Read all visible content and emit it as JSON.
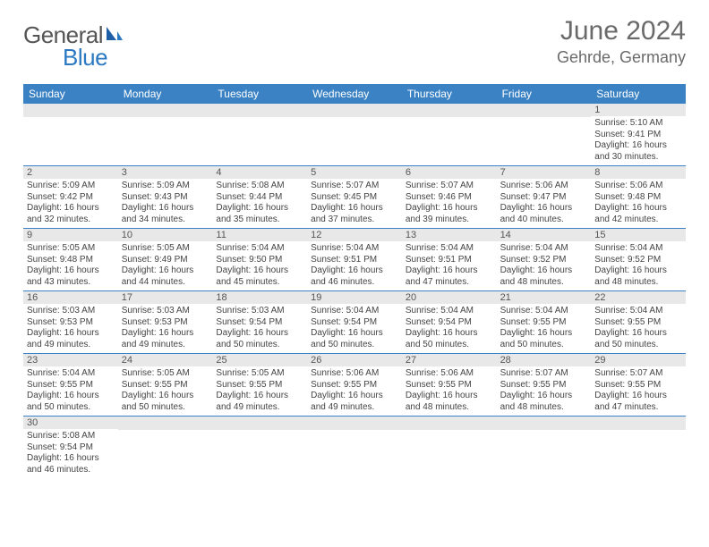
{
  "brand": {
    "part1": "General",
    "part2": "Blue"
  },
  "title": "June 2024",
  "location": "Gehrde, Germany",
  "colors": {
    "header_bg": "#3b82c4",
    "header_text": "#ffffff",
    "brand_gray": "#555555",
    "brand_blue": "#2b79c2",
    "title_gray": "#6a6a6a",
    "row_band": "#e8e8e8",
    "week_divider": "#3b82c4",
    "body_text": "#444444"
  },
  "typography": {
    "title_fontsize": 30,
    "location_fontsize": 18,
    "logo_fontsize": 26,
    "dayheader_fontsize": 12,
    "daynum_fontsize": 11,
    "detail_fontsize": 10
  },
  "dayNames": [
    "Sunday",
    "Monday",
    "Tuesday",
    "Wednesday",
    "Thursday",
    "Friday",
    "Saturday"
  ],
  "weeks": [
    [
      null,
      null,
      null,
      null,
      null,
      null,
      {
        "n": "1",
        "sr": "Sunrise: 5:10 AM",
        "ss": "Sunset: 9:41 PM",
        "dl1": "Daylight: 16 hours",
        "dl2": "and 30 minutes."
      }
    ],
    [
      {
        "n": "2",
        "sr": "Sunrise: 5:09 AM",
        "ss": "Sunset: 9:42 PM",
        "dl1": "Daylight: 16 hours",
        "dl2": "and 32 minutes."
      },
      {
        "n": "3",
        "sr": "Sunrise: 5:09 AM",
        "ss": "Sunset: 9:43 PM",
        "dl1": "Daylight: 16 hours",
        "dl2": "and 34 minutes."
      },
      {
        "n": "4",
        "sr": "Sunrise: 5:08 AM",
        "ss": "Sunset: 9:44 PM",
        "dl1": "Daylight: 16 hours",
        "dl2": "and 35 minutes."
      },
      {
        "n": "5",
        "sr": "Sunrise: 5:07 AM",
        "ss": "Sunset: 9:45 PM",
        "dl1": "Daylight: 16 hours",
        "dl2": "and 37 minutes."
      },
      {
        "n": "6",
        "sr": "Sunrise: 5:07 AM",
        "ss": "Sunset: 9:46 PM",
        "dl1": "Daylight: 16 hours",
        "dl2": "and 39 minutes."
      },
      {
        "n": "7",
        "sr": "Sunrise: 5:06 AM",
        "ss": "Sunset: 9:47 PM",
        "dl1": "Daylight: 16 hours",
        "dl2": "and 40 minutes."
      },
      {
        "n": "8",
        "sr": "Sunrise: 5:06 AM",
        "ss": "Sunset: 9:48 PM",
        "dl1": "Daylight: 16 hours",
        "dl2": "and 42 minutes."
      }
    ],
    [
      {
        "n": "9",
        "sr": "Sunrise: 5:05 AM",
        "ss": "Sunset: 9:48 PM",
        "dl1": "Daylight: 16 hours",
        "dl2": "and 43 minutes."
      },
      {
        "n": "10",
        "sr": "Sunrise: 5:05 AM",
        "ss": "Sunset: 9:49 PM",
        "dl1": "Daylight: 16 hours",
        "dl2": "and 44 minutes."
      },
      {
        "n": "11",
        "sr": "Sunrise: 5:04 AM",
        "ss": "Sunset: 9:50 PM",
        "dl1": "Daylight: 16 hours",
        "dl2": "and 45 minutes."
      },
      {
        "n": "12",
        "sr": "Sunrise: 5:04 AM",
        "ss": "Sunset: 9:51 PM",
        "dl1": "Daylight: 16 hours",
        "dl2": "and 46 minutes."
      },
      {
        "n": "13",
        "sr": "Sunrise: 5:04 AM",
        "ss": "Sunset: 9:51 PM",
        "dl1": "Daylight: 16 hours",
        "dl2": "and 47 minutes."
      },
      {
        "n": "14",
        "sr": "Sunrise: 5:04 AM",
        "ss": "Sunset: 9:52 PM",
        "dl1": "Daylight: 16 hours",
        "dl2": "and 48 minutes."
      },
      {
        "n": "15",
        "sr": "Sunrise: 5:04 AM",
        "ss": "Sunset: 9:52 PM",
        "dl1": "Daylight: 16 hours",
        "dl2": "and 48 minutes."
      }
    ],
    [
      {
        "n": "16",
        "sr": "Sunrise: 5:03 AM",
        "ss": "Sunset: 9:53 PM",
        "dl1": "Daylight: 16 hours",
        "dl2": "and 49 minutes."
      },
      {
        "n": "17",
        "sr": "Sunrise: 5:03 AM",
        "ss": "Sunset: 9:53 PM",
        "dl1": "Daylight: 16 hours",
        "dl2": "and 49 minutes."
      },
      {
        "n": "18",
        "sr": "Sunrise: 5:03 AM",
        "ss": "Sunset: 9:54 PM",
        "dl1": "Daylight: 16 hours",
        "dl2": "and 50 minutes."
      },
      {
        "n": "19",
        "sr": "Sunrise: 5:04 AM",
        "ss": "Sunset: 9:54 PM",
        "dl1": "Daylight: 16 hours",
        "dl2": "and 50 minutes."
      },
      {
        "n": "20",
        "sr": "Sunrise: 5:04 AM",
        "ss": "Sunset: 9:54 PM",
        "dl1": "Daylight: 16 hours",
        "dl2": "and 50 minutes."
      },
      {
        "n": "21",
        "sr": "Sunrise: 5:04 AM",
        "ss": "Sunset: 9:55 PM",
        "dl1": "Daylight: 16 hours",
        "dl2": "and 50 minutes."
      },
      {
        "n": "22",
        "sr": "Sunrise: 5:04 AM",
        "ss": "Sunset: 9:55 PM",
        "dl1": "Daylight: 16 hours",
        "dl2": "and 50 minutes."
      }
    ],
    [
      {
        "n": "23",
        "sr": "Sunrise: 5:04 AM",
        "ss": "Sunset: 9:55 PM",
        "dl1": "Daylight: 16 hours",
        "dl2": "and 50 minutes."
      },
      {
        "n": "24",
        "sr": "Sunrise: 5:05 AM",
        "ss": "Sunset: 9:55 PM",
        "dl1": "Daylight: 16 hours",
        "dl2": "and 50 minutes."
      },
      {
        "n": "25",
        "sr": "Sunrise: 5:05 AM",
        "ss": "Sunset: 9:55 PM",
        "dl1": "Daylight: 16 hours",
        "dl2": "and 49 minutes."
      },
      {
        "n": "26",
        "sr": "Sunrise: 5:06 AM",
        "ss": "Sunset: 9:55 PM",
        "dl1": "Daylight: 16 hours",
        "dl2": "and 49 minutes."
      },
      {
        "n": "27",
        "sr": "Sunrise: 5:06 AM",
        "ss": "Sunset: 9:55 PM",
        "dl1": "Daylight: 16 hours",
        "dl2": "and 48 minutes."
      },
      {
        "n": "28",
        "sr": "Sunrise: 5:07 AM",
        "ss": "Sunset: 9:55 PM",
        "dl1": "Daylight: 16 hours",
        "dl2": "and 48 minutes."
      },
      {
        "n": "29",
        "sr": "Sunrise: 5:07 AM",
        "ss": "Sunset: 9:55 PM",
        "dl1": "Daylight: 16 hours",
        "dl2": "and 47 minutes."
      }
    ],
    [
      {
        "n": "30",
        "sr": "Sunrise: 5:08 AM",
        "ss": "Sunset: 9:54 PM",
        "dl1": "Daylight: 16 hours",
        "dl2": "and 46 minutes."
      },
      null,
      null,
      null,
      null,
      null,
      null
    ]
  ]
}
